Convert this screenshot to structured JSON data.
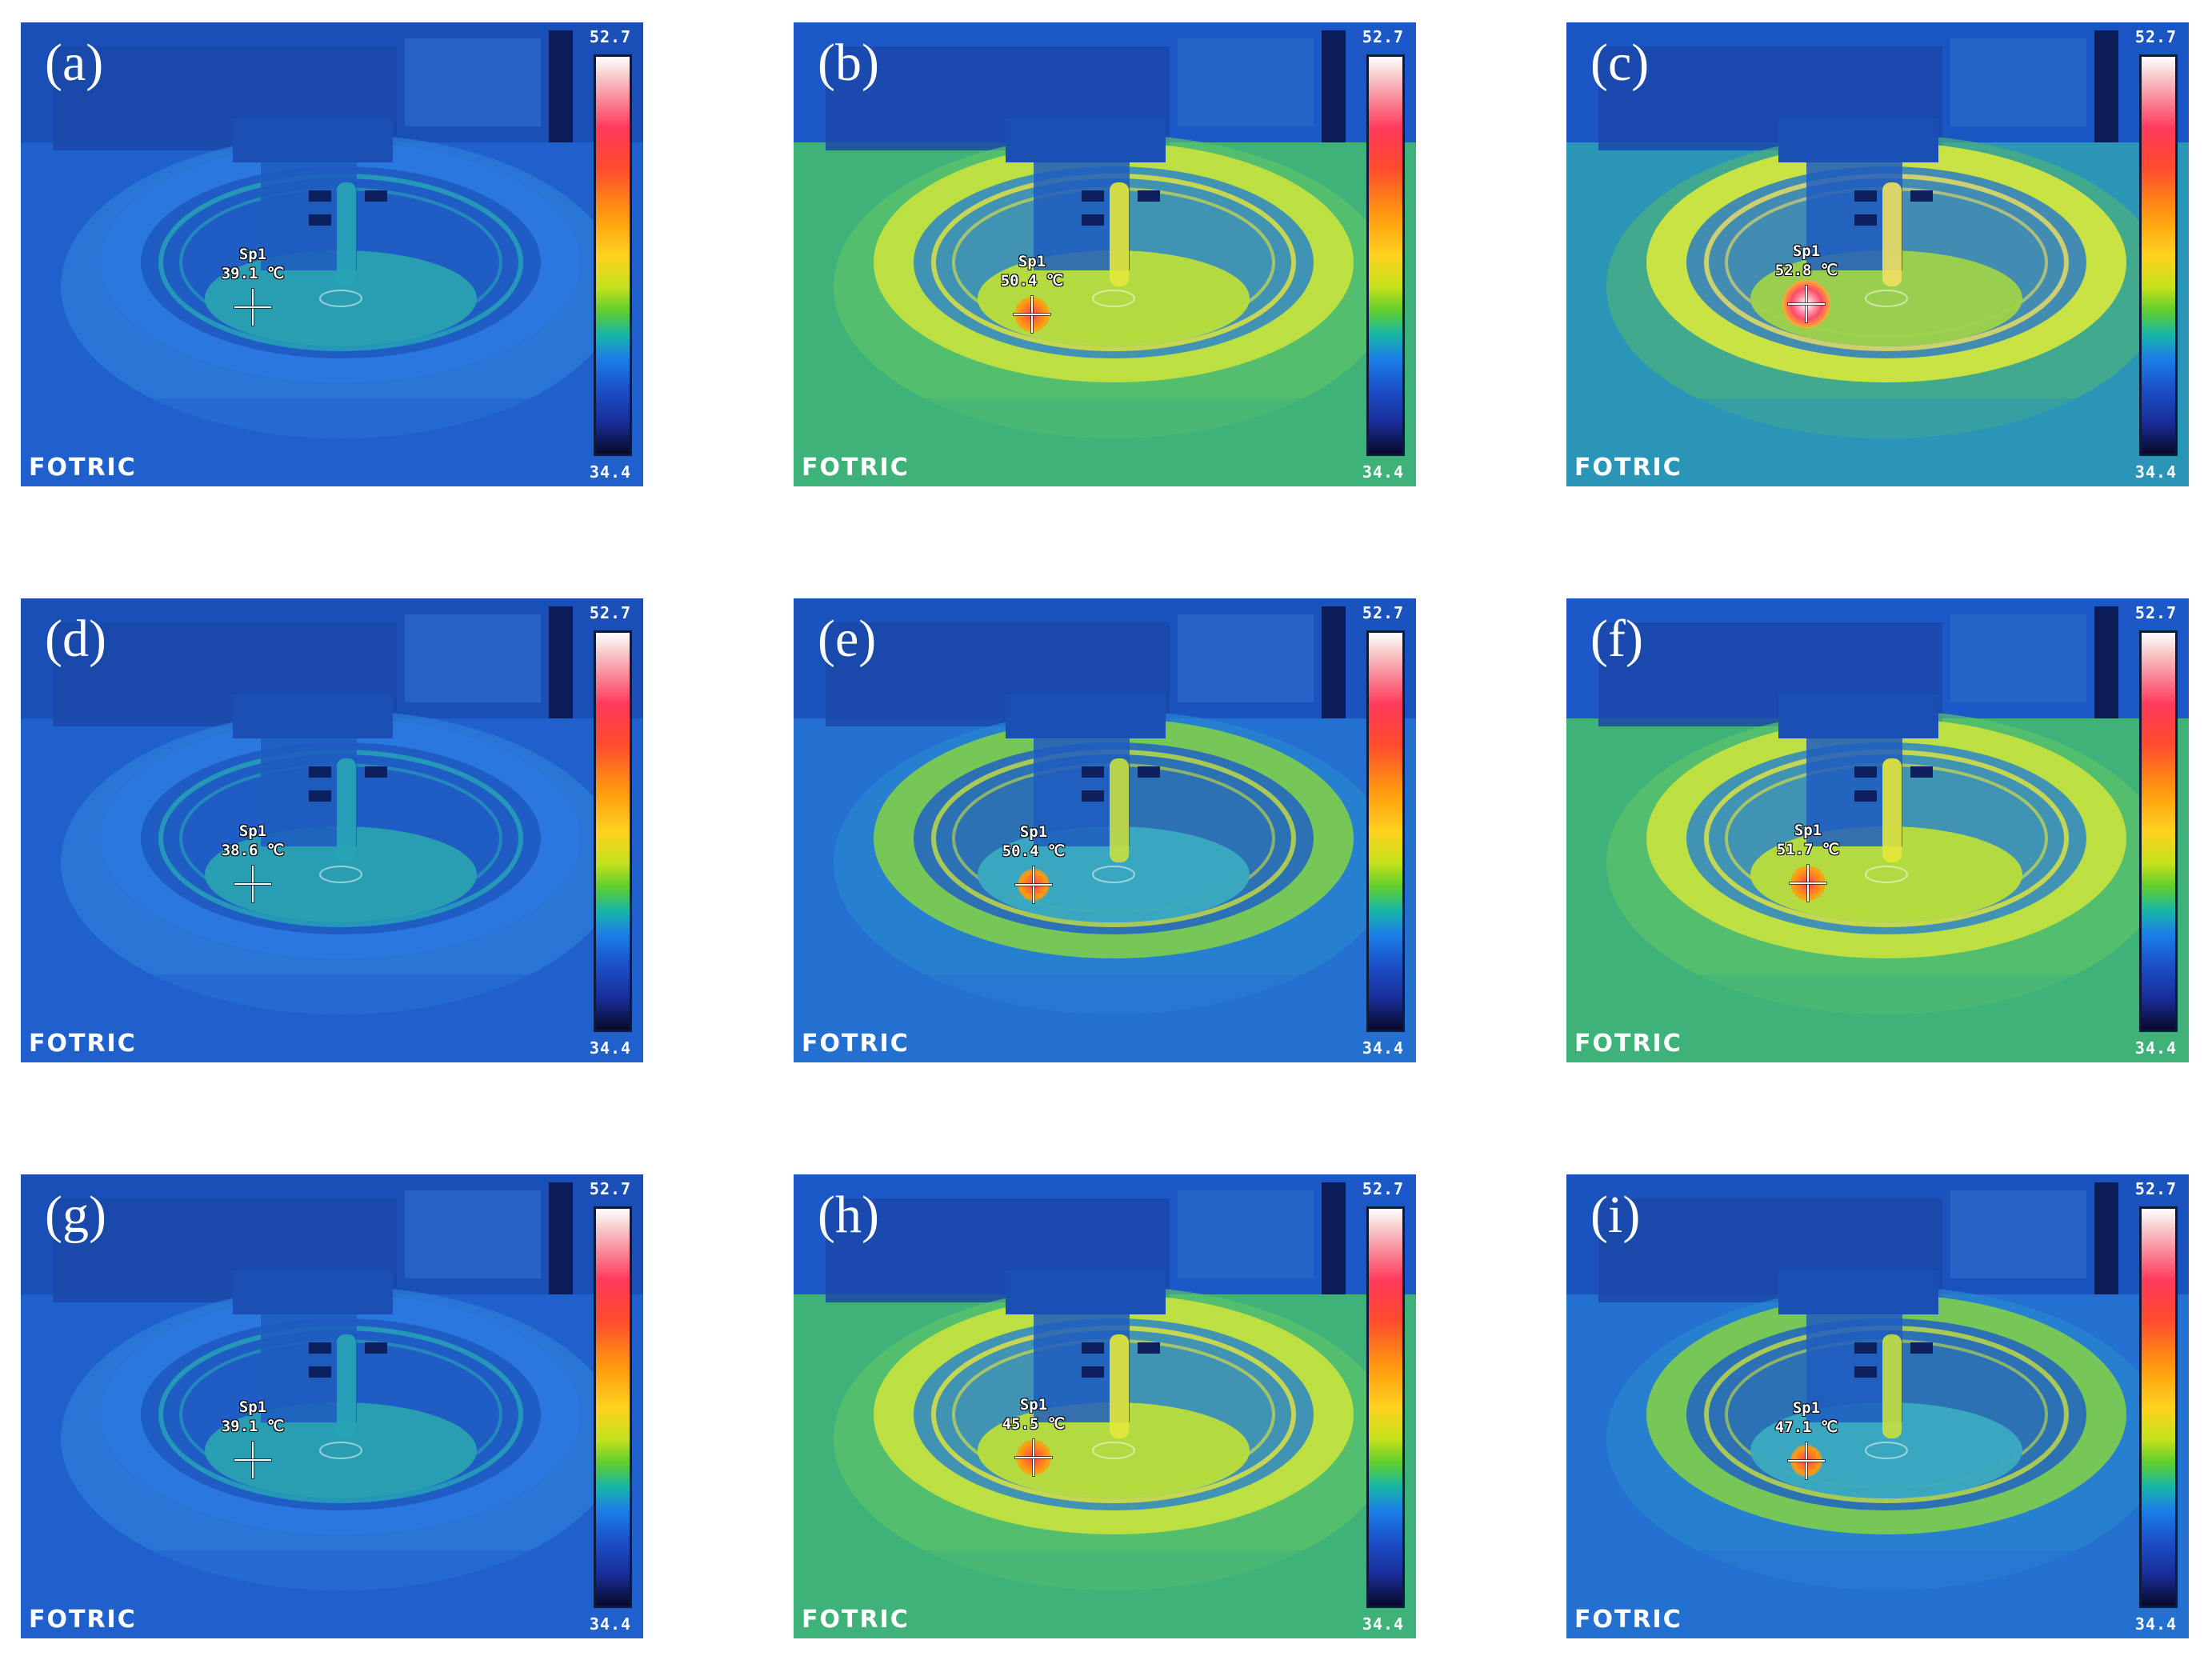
{
  "colorbar": {
    "max": "52.7",
    "min": "34.4",
    "unit": "℃"
  },
  "brand": "FOTRIC",
  "panels": [
    {
      "label": "(a)",
      "spot_name": "Sp1",
      "spot_temp": "39.1 ℃",
      "theme": "cool"
    },
    {
      "label": "(b)",
      "spot_name": "Sp1",
      "spot_temp": "50.4 ℃",
      "theme": "warm"
    },
    {
      "label": "(c)",
      "spot_name": "Sp1",
      "spot_temp": "52.8 ℃",
      "theme": "hot"
    },
    {
      "label": "(d)",
      "spot_name": "Sp1",
      "spot_temp": "38.6 ℃",
      "theme": "cool"
    },
    {
      "label": "(e)",
      "spot_name": "Sp1",
      "spot_temp": "50.4 ℃",
      "theme": "mid"
    },
    {
      "label": "(f)",
      "spot_name": "Sp1",
      "spot_temp": "51.7 ℃",
      "theme": "warm"
    },
    {
      "label": "(g)",
      "spot_name": "Sp1",
      "spot_temp": "39.1 ℃",
      "theme": "cool"
    },
    {
      "label": "(h)",
      "spot_name": "Sp1",
      "spot_temp": "45.5 ℃",
      "theme": "warm"
    },
    {
      "label": "(i)",
      "spot_name": "Sp1",
      "spot_temp": "47.1 ℃",
      "theme": "mid"
    }
  ]
}
